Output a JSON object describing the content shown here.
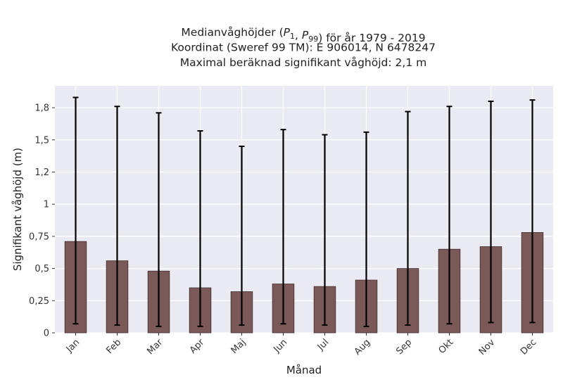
{
  "chart_data": {
    "type": "bar",
    "title_lines": [
      "Medianvåghöjder (P1, P99) för år 1979 - 2019",
      "Koordinat (Sweref 99 TM): E 906014, N 6478247",
      "Maximal beräknad signifikant våghöjd: 2,1 m"
    ],
    "xlabel": "Månad",
    "ylabel": "Signifikant våghöjd (m)",
    "categories": [
      "Jan",
      "Feb",
      "Mar",
      "Apr",
      "Maj",
      "Jun",
      "Jul",
      "Aug",
      "Sep",
      "Okt",
      "Nov",
      "Dec"
    ],
    "values": [
      0.71,
      0.56,
      0.48,
      0.35,
      0.32,
      0.38,
      0.36,
      0.41,
      0.5,
      0.65,
      0.67,
      0.78
    ],
    "p1": [
      0.07,
      0.06,
      0.05,
      0.05,
      0.06,
      0.07,
      0.06,
      0.05,
      0.06,
      0.07,
      0.08,
      0.08
    ],
    "p99": [
      1.83,
      1.76,
      1.71,
      1.57,
      1.45,
      1.58,
      1.54,
      1.56,
      1.72,
      1.76,
      1.8,
      1.81
    ],
    "ylim": [
      0,
      1.92
    ],
    "yticks": [
      0,
      0.25,
      0.5,
      0.75,
      1,
      1.25,
      1.5,
      1.75
    ],
    "ytick_labels": [
      "0",
      "0,25",
      "0,5",
      "0,75",
      "1",
      "1,2",
      "1,5",
      "1,8"
    ],
    "grid": true,
    "bar_color": "#7b5959",
    "bar_edge_color": "#3f2e2e",
    "error_color": "#000000",
    "plot_background": "#eaeaf2",
    "grid_color": "#ffffff"
  }
}
